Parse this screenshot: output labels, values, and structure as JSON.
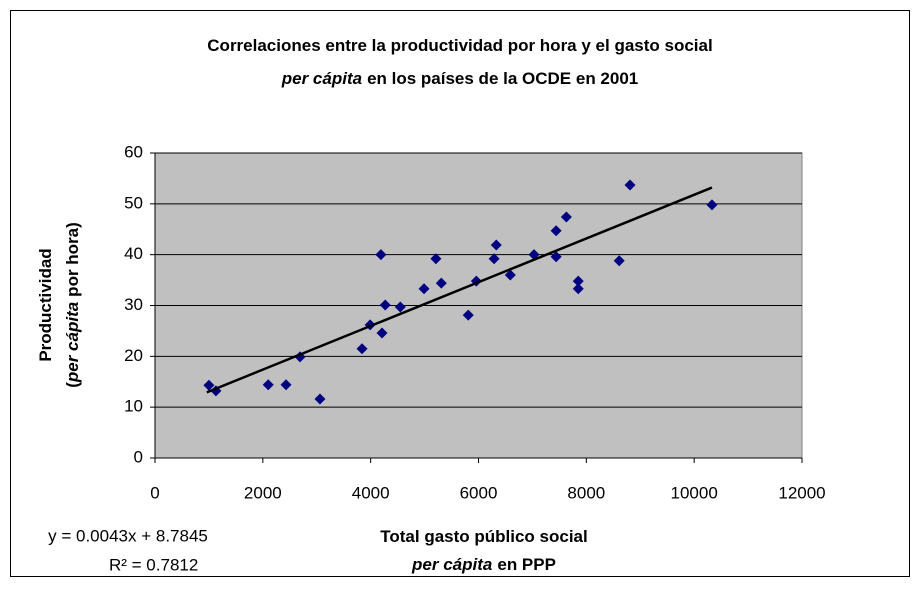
{
  "chart_data": {
    "type": "scatter",
    "title": [
      [
        {
          "text": "Correlaciones entre la productividad por hora y el gasto social",
          "italic": false
        }
      ],
      [
        {
          "text": "per cápita",
          "italic": true
        },
        {
          "text": "en los países de la OCDE en 2001",
          "italic": false
        }
      ]
    ],
    "xlabel": [
      [
        {
          "text": "Total gasto público social",
          "italic": false
        }
      ],
      [
        {
          "text": "per cápita",
          "italic": true
        },
        {
          "text": "en PPP",
          "italic": false
        }
      ]
    ],
    "ylabel": [
      [
        {
          "text": "Productividad",
          "italic": false
        }
      ],
      [
        {
          "text": "(",
          "italic": false
        },
        {
          "text": "per cápita",
          "italic": true
        },
        {
          "text": "por hora)",
          "italic": false
        }
      ]
    ],
    "x": [
      1000,
      1130,
      2100,
      2430,
      2690,
      3060,
      3840,
      3990,
      4190,
      4210,
      4270,
      4550,
      4990,
      5210,
      5310,
      5810,
      5960,
      6290,
      6330,
      6590,
      7030,
      7440,
      7440,
      7630,
      7850,
      7850,
      8610,
      8810,
      10330
    ],
    "series": [
      {
        "name": "Productividad",
        "color": "#000080",
        "values": [
          14.3,
          13.2,
          14.4,
          14.4,
          19.9,
          11.6,
          21.5,
          26.2,
          40.0,
          24.6,
          30.1,
          29.7,
          33.3,
          39.2,
          34.4,
          28.1,
          34.8,
          39.2,
          41.9,
          36.0,
          40.0,
          44.7,
          39.6,
          47.4,
          34.8,
          33.3,
          38.8,
          53.7,
          49.8
        ]
      }
    ],
    "trendline": {
      "slope": 0.0043,
      "intercept": 8.7845,
      "xrange": [
        960,
        10330
      ],
      "color": "#000000",
      "equation": "y = 0.0043x + 8.7845",
      "r2": "R² = 0.7812"
    },
    "xlim": [
      0,
      12000
    ],
    "xticks": [
      0,
      2000,
      4000,
      6000,
      8000,
      10000,
      12000
    ],
    "ylim": [
      0,
      60
    ],
    "yticks": [
      0,
      10,
      20,
      30,
      40,
      50,
      60
    ],
    "grid": true,
    "plot_background": "#c0c0c0"
  }
}
